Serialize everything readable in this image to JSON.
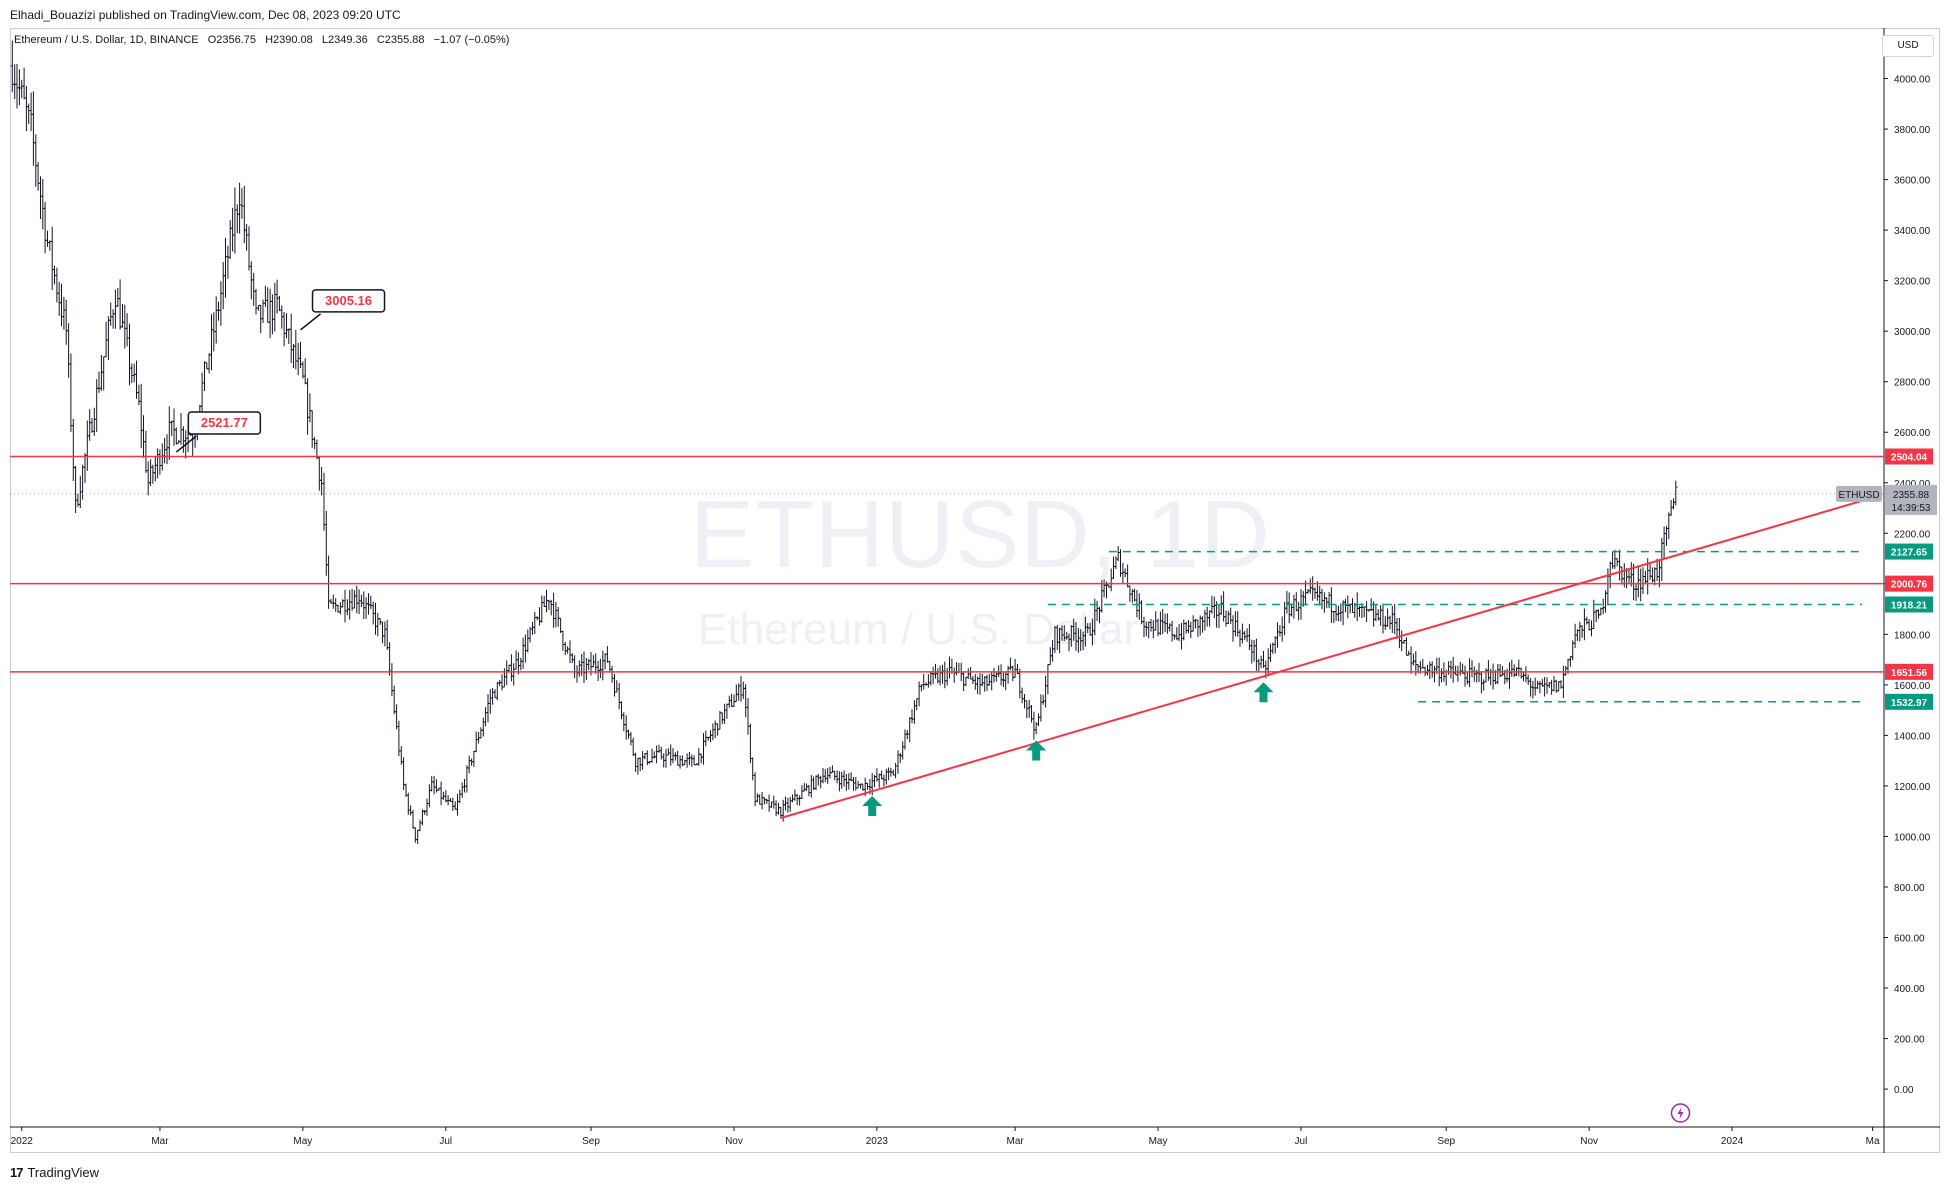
{
  "publisher_line": "Elhadi_Bouazizi published on TradingView.com, Dec 08, 2023 09:20 UTC",
  "symbol": {
    "name": "Ethereum / U.S. Dollar, 1D, BINANCE",
    "open": "O2356.75",
    "high": "H2390.08",
    "low": "L2349.36",
    "close": "C2355.88",
    "change": "−1.07 (−0.05%)"
  },
  "currency_button": "USD",
  "watermark": {
    "ticker": "ETHUSD, 1D",
    "name": "Ethereum / U.S. Dollar"
  },
  "brand": "TradingView",
  "colors": {
    "resistance": "#f23645",
    "support_dashed": "#089981",
    "arrow": "#089981",
    "bars": "#131722",
    "callout_text": "#f23645"
  },
  "chart_data": {
    "type": "ohlc-bars",
    "ylim": [
      -150,
      4200
    ],
    "y_ticks": [
      4000,
      3800,
      3600,
      3400,
      3200,
      3000,
      2800,
      2600,
      2400,
      2200,
      2000,
      1800,
      1600,
      1400,
      1200,
      1000,
      800,
      600,
      400,
      200,
      0
    ],
    "y_tick_labels": [
      "4000.00",
      "3800.00",
      "3600.00",
      "3400.00",
      "3200.00",
      "3000.00",
      "2800.00",
      "2600.00",
      "2400.00",
      "2200.00",
      "2000.00",
      "1800.00",
      "1600.00",
      "1400.00",
      "1200.00",
      "1000.00",
      "800.00",
      "600.00",
      "400.00",
      "200.00",
      "0.00"
    ],
    "x_labels": [
      "2022",
      "Mar",
      "May",
      "Jul",
      "Sep",
      "Nov",
      "2023",
      "Mar",
      "May",
      "Jul",
      "Sep",
      "Nov",
      "2024",
      "Ma"
    ],
    "x_label_dates": [
      "2022-01-01",
      "2022-03-01",
      "2022-05-01",
      "2022-07-01",
      "2022-09-01",
      "2022-11-01",
      "2023-01-01",
      "2023-03-01",
      "2023-05-01",
      "2023-07-01",
      "2023-09-01",
      "2023-11-01",
      "2024-01-01",
      "2024-03-01"
    ],
    "x_range": [
      "2021-12-27",
      "2024-03-05"
    ],
    "price_path": [
      [
        "2021-12-28",
        4050
      ],
      [
        "2022-01-05",
        3800
      ],
      [
        "2022-01-12",
        3350
      ],
      [
        "2022-01-20",
        3000
      ],
      [
        "2022-01-24",
        2300
      ],
      [
        "2022-02-01",
        2700
      ],
      [
        "2022-02-10",
        3150
      ],
      [
        "2022-02-20",
        2700
      ],
      [
        "2022-02-24",
        2400
      ],
      [
        "2022-03-05",
        2600
      ],
      [
        "2022-03-15",
        2600
      ],
      [
        "2022-03-25",
        3050
      ],
      [
        "2022-04-04",
        3550
      ],
      [
        "2022-04-11",
        3050
      ],
      [
        "2022-04-20",
        3100
      ],
      [
        "2022-05-01",
        2800
      ],
      [
        "2022-05-09",
        2400
      ],
      [
        "2022-05-12",
        1900
      ],
      [
        "2022-05-25",
        1950
      ],
      [
        "2022-06-05",
        1800
      ],
      [
        "2022-06-13",
        1200
      ],
      [
        "2022-06-18",
        1000
      ],
      [
        "2022-06-25",
        1200
      ],
      [
        "2022-07-05",
        1100
      ],
      [
        "2022-07-20",
        1550
      ],
      [
        "2022-08-01",
        1700
      ],
      [
        "2022-08-14",
        1950
      ],
      [
        "2022-08-25",
        1650
      ],
      [
        "2022-09-08",
        1700
      ],
      [
        "2022-09-20",
        1300
      ],
      [
        "2022-10-01",
        1320
      ],
      [
        "2022-10-15",
        1290
      ],
      [
        "2022-10-25",
        1450
      ],
      [
        "2022-11-05",
        1600
      ],
      [
        "2022-11-10",
        1150
      ],
      [
        "2022-11-21",
        1100
      ],
      [
        "2022-12-10",
        1250
      ],
      [
        "2022-12-25",
        1200
      ],
      [
        "2023-01-08",
        1250
      ],
      [
        "2023-01-20",
        1600
      ],
      [
        "2023-02-01",
        1650
      ],
      [
        "2023-02-15",
        1600
      ],
      [
        "2023-03-01",
        1650
      ],
      [
        "2023-03-10",
        1420
      ],
      [
        "2023-03-18",
        1800
      ],
      [
        "2023-04-01",
        1800
      ],
      [
        "2023-04-14",
        2100
      ],
      [
        "2023-04-25",
        1850
      ],
      [
        "2023-05-10",
        1800
      ],
      [
        "2023-05-28",
        1900
      ],
      [
        "2023-06-10",
        1750
      ],
      [
        "2023-06-15",
        1650
      ],
      [
        "2023-06-25",
        1900
      ],
      [
        "2023-07-05",
        1950
      ],
      [
        "2023-07-20",
        1900
      ],
      [
        "2023-08-10",
        1850
      ],
      [
        "2023-08-17",
        1680
      ],
      [
        "2023-09-01",
        1650
      ],
      [
        "2023-09-15",
        1630
      ],
      [
        "2023-10-01",
        1650
      ],
      [
        "2023-10-10",
        1580
      ],
      [
        "2023-10-20",
        1600
      ],
      [
        "2023-10-26",
        1800
      ],
      [
        "2023-11-06",
        1880
      ],
      [
        "2023-11-10",
        2100
      ],
      [
        "2023-11-20",
        2000
      ],
      [
        "2023-11-30",
        2050
      ],
      [
        "2023-12-04",
        2200
      ],
      [
        "2023-12-08",
        2355
      ]
    ],
    "horizontal_levels": [
      {
        "price": 2504.04,
        "label": "2504.04",
        "style": "solid",
        "color": "#f23645"
      },
      {
        "price": 2000.76,
        "label": "2000.76",
        "style": "solid",
        "color": "#f23645"
      },
      {
        "price": 1651.56,
        "label": "1651.56",
        "style": "solid",
        "color": "#f23645"
      },
      {
        "price": 2127.65,
        "label": "2127.65",
        "style": "dashed",
        "color": "#089981",
        "from": "2023-04-10"
      },
      {
        "price": 1918.21,
        "label": "1918.21",
        "style": "dashed",
        "color": "#089981",
        "from": "2023-03-15"
      },
      {
        "price": 1532.97,
        "label": "1532.97",
        "style": "dashed",
        "color": "#089981",
        "from": "2023-08-20"
      }
    ],
    "trendline": {
      "from": [
        "2022-11-21",
        1073
      ],
      "to": [
        "2024-02-26",
        2330
      ],
      "color": "#f23645"
    },
    "callouts": [
      {
        "text": "3005.16",
        "date": "2022-04-30",
        "price": 3005.16
      },
      {
        "text": "2521.77",
        "date": "2022-03-08",
        "price": 2521.77
      }
    ],
    "up_arrows": [
      {
        "date": "2022-12-30",
        "price": 1160
      },
      {
        "date": "2023-03-10",
        "price": 1380
      },
      {
        "date": "2023-06-15",
        "price": 1610
      }
    ],
    "last_price": {
      "symbol": "ETHUSD",
      "price": 2355.88,
      "label": "2355.88",
      "countdown": "14:39:53"
    }
  }
}
